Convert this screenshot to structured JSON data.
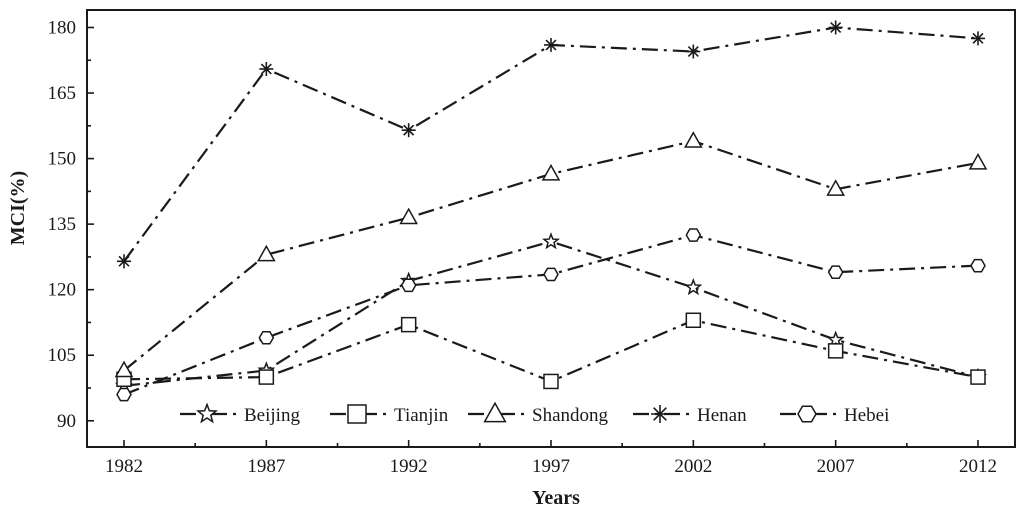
{
  "chart_data": {
    "type": "line",
    "title": "",
    "xlabel": "Years",
    "ylabel": "MCI(%)",
    "x": [
      1982,
      1987,
      1992,
      1997,
      2002,
      2007,
      2012
    ],
    "x_tick_labels": [
      "1982",
      "1987",
      "1992",
      "1997",
      "2002",
      "2007",
      "2012"
    ],
    "ylim": [
      84,
      184
    ],
    "y_ticks": [
      90,
      105,
      120,
      135,
      150,
      165,
      180
    ],
    "y_tick_labels": [
      "90",
      "105",
      "120",
      "135",
      "150",
      "165",
      "180"
    ],
    "grid": false,
    "legend_position": "bottom-inside",
    "series": [
      {
        "name": "Beijing",
        "marker": "star",
        "values": [
          98,
          101.5,
          122,
          131,
          120.5,
          108.5,
          100
        ]
      },
      {
        "name": "Tianjin",
        "marker": "square",
        "values": [
          99.5,
          100,
          112,
          99,
          113,
          106,
          100
        ]
      },
      {
        "name": "Shandong",
        "marker": "triangle",
        "values": [
          101.5,
          128,
          136.5,
          146.5,
          154,
          143,
          149
        ]
      },
      {
        "name": "Henan",
        "marker": "asterisk",
        "values": [
          126.5,
          170.5,
          156.5,
          176,
          174.5,
          180,
          177.5
        ]
      },
      {
        "name": "Hebei",
        "marker": "hexagon",
        "values": [
          96,
          109,
          121,
          123.5,
          132.5,
          124,
          125.5
        ]
      }
    ],
    "line_color": "#1a1a1a",
    "line_style": "dash-dot"
  }
}
